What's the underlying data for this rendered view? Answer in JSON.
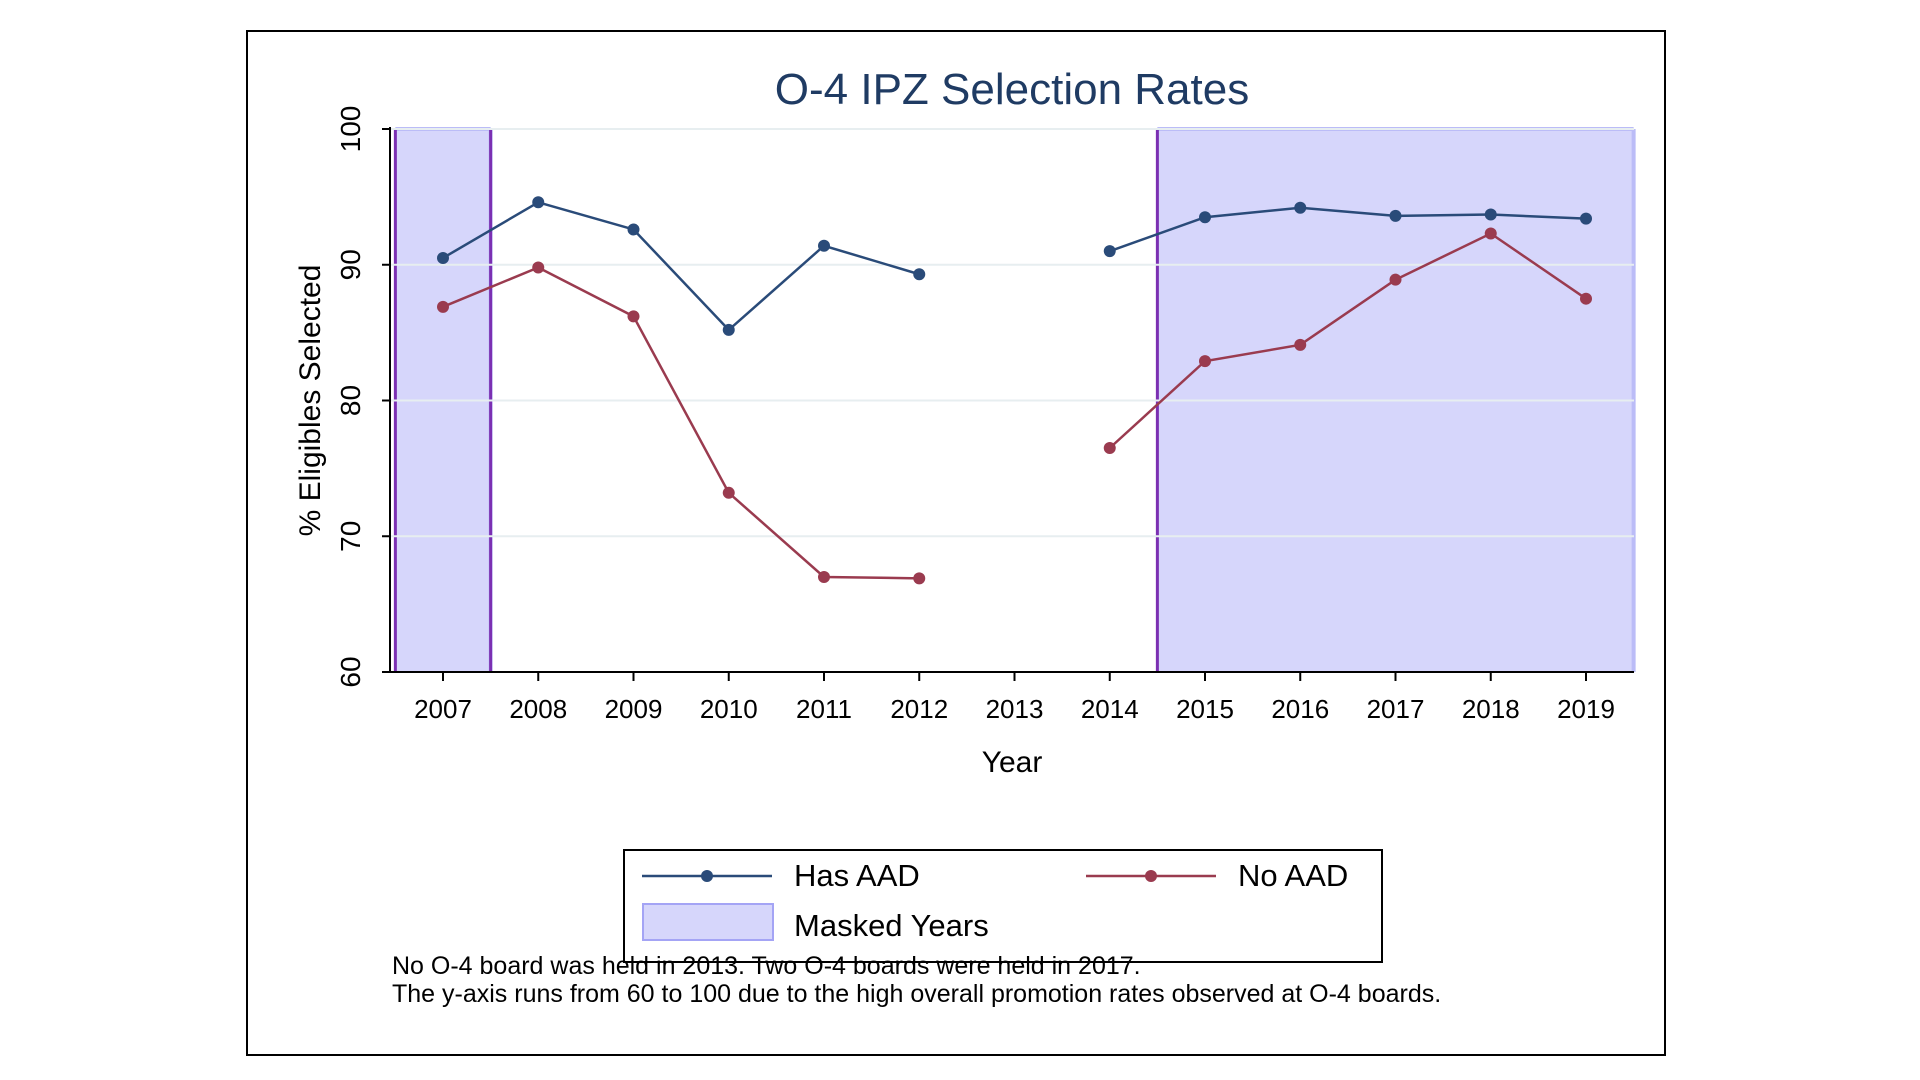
{
  "chart_data": {
    "type": "line",
    "title": "O-4 IPZ Selection Rates",
    "xlabel": "Year",
    "ylabel": "% Eligibles Selected",
    "ylim": [
      60,
      100
    ],
    "yticks": [
      60,
      70,
      80,
      90,
      100
    ],
    "grid": true,
    "categories": [
      "2007",
      "2008",
      "2009",
      "2010",
      "2011",
      "2012",
      "2013",
      "2014",
      "2015",
      "2016",
      "2017",
      "2018",
      "2019"
    ],
    "series": [
      {
        "name": "Has AAD",
        "color": "#2a4b79",
        "values": [
          90.5,
          94.6,
          92.6,
          85.2,
          91.4,
          89.3,
          null,
          91.0,
          93.5,
          94.2,
          93.6,
          93.7,
          93.4
        ]
      },
      {
        "name": "No AAD",
        "color": "#9a3b4f",
        "values": [
          86.9,
          89.8,
          86.2,
          73.2,
          67.0,
          66.9,
          null,
          76.5,
          82.9,
          84.1,
          88.9,
          92.3,
          87.5
        ]
      }
    ],
    "masked_ranges": [
      [
        2006.5,
        2007.5
      ],
      [
        2014.5,
        2019.5
      ]
    ],
    "masked_label": "Masked Years",
    "masked_fill": "#d6d6fb",
    "masked_edge": "#7b2fb2",
    "legend_position": "bottom"
  },
  "notes": [
    "No O-4 board was held in 2013. Two O-4 boards were held in 2017.",
    "The y-axis runs from 60 to 100 due to the high overall promotion rates observed at O-4 boards."
  ]
}
